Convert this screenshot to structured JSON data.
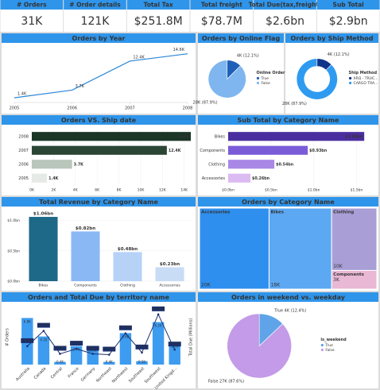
{
  "kpis": [
    {
      "label": "# Orders",
      "value": "31K"
    },
    {
      "label": "# Order details",
      "value": "121K"
    },
    {
      "label": "Total Tax",
      "value": "$251.8M"
    },
    {
      "label": "Total freight",
      "value": "$78.7M"
    },
    {
      "label": "Total Due(tax,freight)",
      "value": "$2.6bn"
    },
    {
      "label": "Sub Total",
      "value": "$2.9bn"
    }
  ],
  "chart_data": [
    {
      "type": "line",
      "title": "Orders by Year",
      "x": [
        2005,
        2006,
        2007,
        2008
      ],
      "xticks": [
        2005,
        2006,
        2007,
        2008
      ],
      "xlim": [
        2005,
        2008
      ],
      "ylim": [
        0,
        15000
      ],
      "values": [
        1400,
        3700,
        12400,
        14600
      ],
      "value_labels": [
        "1.4K",
        "3.7K",
        "12.4K",
        "14.6K"
      ],
      "color": "#2b86d6"
    },
    {
      "type": "pie",
      "title": "Orders by Online Flag",
      "legend_title": "Online Order Fl...",
      "categories": [
        "True",
        "False"
      ],
      "values": [
        4000,
        28000
      ],
      "value_labels": [
        "4K (12.1%)",
        "28K (87.9%)"
      ],
      "colors": [
        "#1f5fb8",
        "#7fb6ef"
      ]
    },
    {
      "type": "donut",
      "title": "Orders by Ship Method",
      "legend_title": "Ship Method",
      "categories": [
        "XRQ - TRUC...",
        "CARGO TRA..."
      ],
      "values": [
        4000,
        28000
      ],
      "value_labels": [
        "4K (12.1%)",
        "28K (87.9%)"
      ],
      "colors": [
        "#12338a",
        "#2f9bf0"
      ]
    },
    {
      "type": "hbar",
      "title": "Orders VS. Ship date",
      "categories": [
        "2008",
        "2007",
        "2006",
        "2005"
      ],
      "values": [
        14600,
        12400,
        3700,
        1400
      ],
      "value_labels": [
        "14.6K",
        "12.4K",
        "3.7K",
        "1.4K"
      ],
      "colors": [
        "#1b3526",
        "#2c4636",
        "#b9c6bb",
        "#e6eae6"
      ],
      "xlim": [
        0,
        14600
      ],
      "xticks": [
        {
          "value": 0,
          "label": "0K"
        },
        {
          "value": 2000,
          "label": "2K"
        },
        {
          "value": 4000,
          "label": "4K"
        },
        {
          "value": 6000,
          "label": "6K"
        },
        {
          "value": 8000,
          "label": "8K"
        },
        {
          "value": 10000,
          "label": "10K"
        },
        {
          "value": 12000,
          "label": "12K"
        },
        {
          "value": 14000,
          "label": "14K"
        }
      ]
    },
    {
      "type": "hbar",
      "title": "Sub Total by Category Name",
      "categories": [
        "Bikes",
        "Components",
        "Clothing",
        "Accessories"
      ],
      "values": [
        1.59,
        0.93,
        0.54,
        0.26
      ],
      "value_labels": [
        "$1.59bn",
        "$0.93bn",
        "$0.54bn",
        "$0.26bn"
      ],
      "colors": [
        "#4a2ea0",
        "#7b5cd8",
        "#a987e6",
        "#dcbaf2"
      ],
      "xlim": [
        0,
        1.7
      ],
      "xticks": [
        {
          "value": 0,
          "label": "$0.0bn"
        },
        {
          "value": 0.5,
          "label": "$0.5bn"
        },
        {
          "value": 1,
          "label": "$1.0bn"
        },
        {
          "value": 1.5,
          "label": "$1.5bn"
        }
      ]
    },
    {
      "type": "bar",
      "title": "Total Revenue by Category Name",
      "categories": [
        "Bikes",
        "Components",
        "Clothing",
        "Accessories"
      ],
      "values": [
        1.06,
        0.82,
        0.48,
        0.23
      ],
      "value_labels": [
        "$1.06bn",
        "$0.82bn",
        "$0.48bn",
        "$0.23bn"
      ],
      "colors": [
        "#1e6888",
        "#8ab8f5",
        "#b6d2f7",
        "#c9dcf5"
      ],
      "ylim": [
        0,
        1.1
      ],
      "yticks": [
        {
          "value": 0,
          "label": "$0.0bn"
        },
        {
          "value": 0.5,
          "label": "$0.5bn"
        },
        {
          "value": 1,
          "label": "$1.0bn"
        }
      ]
    },
    {
      "type": "treemap",
      "title": "Orders by Category Name",
      "categories": [
        "Accessories",
        "Bikes",
        "Clothing",
        "Components"
      ],
      "values": [
        20000,
        18000,
        10000,
        3000
      ],
      "value_labels": [
        "20K",
        "18K",
        "10K",
        "3K"
      ],
      "colors": [
        "#2f8fef",
        "#5ca8f2",
        "#a99fd6",
        "#e9b8d4"
      ]
    },
    {
      "type": "combo",
      "title": "Orders and Total Due by territory name",
      "y_label": "# Orders",
      "y2_label": "Total Due (Millions)",
      "categories": [
        "Australia",
        "Canada",
        "Central",
        "France",
        "Germany",
        "Northeast",
        "Northwest",
        "Southeast",
        "Southwest",
        "United Kingd..."
      ],
      "ylim": [
        0,
        8000
      ],
      "y2lim": [
        0,
        260
      ],
      "series": [
        {
          "name": "# Orders",
          "color": "#3d9cf0",
          "values": [
            6800,
            4100,
            400,
            2700,
            2600,
            400,
            4600,
            500,
            6200,
            3200
          ],
          "value_labels": [
            "6.8K",
            "4.1K",
            "0.4K",
            "2.7K",
            "2.6K",
            "0.4K",
            "4.6K",
            "0.5K",
            "6.2K",
            "3.2K"
          ]
        },
        {
          "name": "Total Due",
          "color": "#1a2f6e",
          "axis": "y2",
          "values": [
            87,
            160,
            51,
            75,
            51,
            47,
            148,
            57,
            238,
            71
          ],
          "value_labels": [
            "$87M",
            "$160M",
            "$51M",
            "$75M",
            "$51M",
            "$47M",
            "$148M",
            "$57M",
            "$238M",
            "$71M"
          ]
        }
      ]
    },
    {
      "type": "pie",
      "title": "Orders in weekend vs. weekday",
      "legend_title": "is_weekend",
      "categories": [
        "True",
        "False"
      ],
      "values": [
        4000,
        27000
      ],
      "value_labels": [
        "True 4K (12.4%)",
        "False 27K (87.6%)"
      ],
      "colors": [
        "#5fa4e8",
        "#c39be8"
      ]
    }
  ]
}
